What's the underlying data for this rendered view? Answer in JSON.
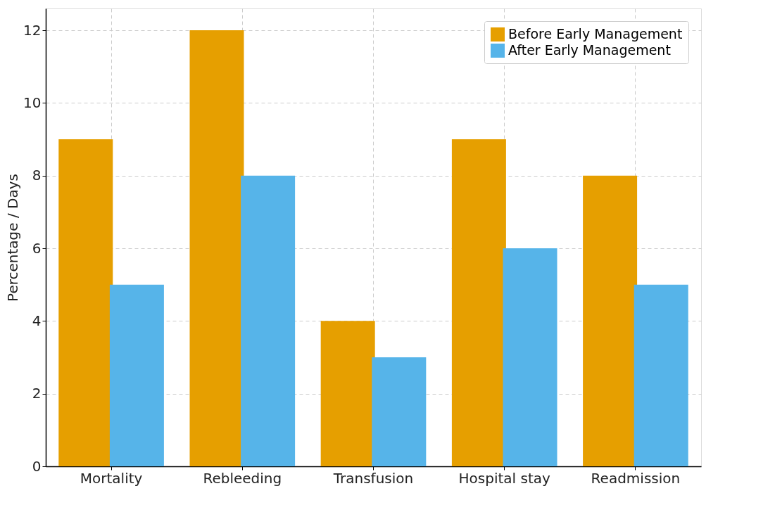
{
  "chart_data": {
    "type": "bar",
    "ylabel": "Percentage / Days",
    "categories": [
      "Mortality",
      "Rebleeding",
      "Transfusion",
      "Hospital stay",
      "Readmission"
    ],
    "series": [
      {
        "name": "Before Early Management",
        "color": "#e69f00",
        "values": [
          9,
          12,
          4,
          9,
          8
        ]
      },
      {
        "name": "After Early Management",
        "color": "#56b4e9",
        "values": [
          5,
          8,
          3,
          6,
          5
        ]
      }
    ],
    "ylim": [
      0,
      12.6
    ],
    "yticks": [
      0,
      2,
      4,
      6,
      8,
      10,
      12
    ],
    "grid": true,
    "legend": "top right"
  }
}
